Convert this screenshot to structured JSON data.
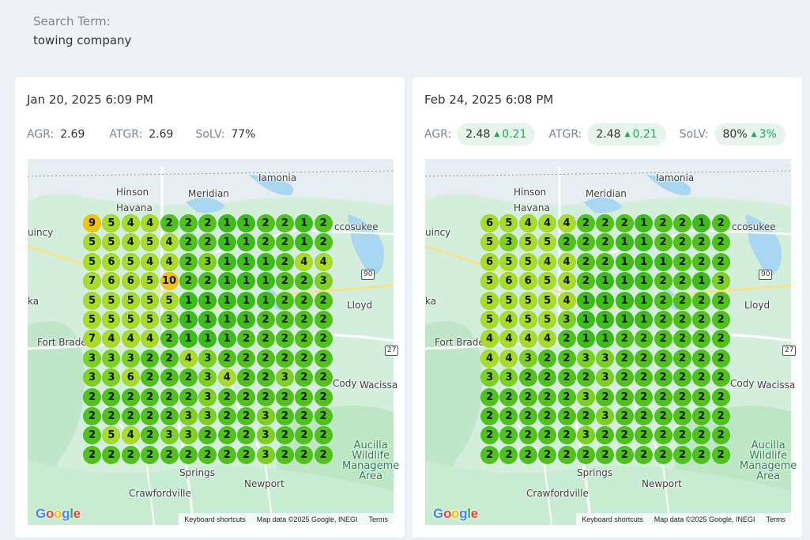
{
  "search": {
    "label": "Search Term:",
    "value": "towing company"
  },
  "colors": {
    "rank_1": "#3cbd1a",
    "rank_2": "#50c31b",
    "rank_3": "#7cd21f",
    "rank_4": "#a9dc28",
    "rank_5": "#a9dc28",
    "rank_6": "#a9dc28",
    "rank_7": "#a9dc28",
    "rank_8": "#f2c211",
    "rank_9": "#f2c211",
    "rank_10": "#f2c211",
    "delta_positive": "#22a85a"
  },
  "map": {
    "labels": {
      "iamonia": "Iamonia",
      "hinson": "Hinson",
      "meridian": "Meridian",
      "havana": "Havana",
      "miccosukee": "ccosukee",
      "quincy": "uincy",
      "lloyd": "Lloyd",
      "fort_braden": "Fort Braden",
      "cody": "Cody",
      "wacissa": "Wacissa",
      "wakulla_springs": "Springs",
      "newport": "Newport",
      "crawfordville": "Crawfordville",
      "aucilla": "Aucilla\nWildlife\nManageme\nArea",
      "midway": "ka",
      "hw90": "90",
      "hw27": "27"
    },
    "google_logo": "Google",
    "attribution": {
      "shortcuts": "Keyboard shortcuts",
      "map_data": "Map data ©2025 Google, INEGI",
      "terms": "Terms"
    }
  },
  "scans": [
    {
      "date": "Jan 20, 2025 6:09 PM",
      "metrics": {
        "agr_label": "AGR:",
        "agr_value": "2.69",
        "agr_delta": "",
        "atgr_label": "ATGR:",
        "atgr_value": "2.69",
        "atgr_delta": "",
        "solv_label": "SoLV:",
        "solv_value": "77%",
        "solv_delta": ""
      },
      "grid": [
        [
          9,
          5,
          4,
          4,
          2,
          2,
          2,
          1,
          1,
          2,
          2,
          1,
          2
        ],
        [
          5,
          5,
          4,
          5,
          4,
          2,
          2,
          1,
          1,
          2,
          2,
          1,
          2
        ],
        [
          5,
          6,
          5,
          4,
          4,
          2,
          3,
          1,
          1,
          1,
          2,
          4,
          4
        ],
        [
          7,
          6,
          6,
          5,
          10,
          2,
          2,
          1,
          1,
          1,
          2,
          2,
          3
        ],
        [
          5,
          5,
          5,
          5,
          5,
          1,
          1,
          1,
          1,
          1,
          2,
          2,
          2
        ],
        [
          5,
          5,
          5,
          5,
          3,
          1,
          1,
          1,
          1,
          2,
          2,
          2,
          2
        ],
        [
          7,
          4,
          4,
          4,
          2,
          1,
          1,
          1,
          2,
          2,
          2,
          2,
          2
        ],
        [
          3,
          3,
          3,
          2,
          2,
          4,
          3,
          2,
          2,
          2,
          2,
          2,
          2
        ],
        [
          3,
          3,
          6,
          2,
          2,
          2,
          3,
          4,
          2,
          2,
          3,
          2,
          2
        ],
        [
          2,
          2,
          2,
          2,
          2,
          2,
          3,
          2,
          2,
          2,
          2,
          2,
          2
        ],
        [
          2,
          2,
          2,
          2,
          2,
          3,
          3,
          2,
          2,
          3,
          2,
          2,
          2
        ],
        [
          2,
          5,
          4,
          2,
          3,
          3,
          2,
          2,
          2,
          3,
          2,
          2,
          2
        ],
        [
          2,
          2,
          2,
          2,
          2,
          2,
          2,
          2,
          2,
          3,
          2,
          2,
          2
        ]
      ]
    },
    {
      "date": "Feb 24, 2025 6:08 PM",
      "metrics": {
        "agr_label": "AGR:",
        "agr_value": "2.48",
        "agr_delta": "0.21",
        "atgr_label": "ATGR:",
        "atgr_value": "2.48",
        "atgr_delta": "0.21",
        "solv_label": "SoLV:",
        "solv_value": "80%",
        "solv_delta": "3%"
      },
      "grid": [
        [
          6,
          5,
          4,
          4,
          4,
          2,
          2,
          2,
          1,
          2,
          2,
          1,
          2
        ],
        [
          5,
          3,
          5,
          5,
          2,
          2,
          2,
          1,
          1,
          2,
          2,
          2,
          2
        ],
        [
          6,
          5,
          5,
          4,
          4,
          2,
          2,
          1,
          1,
          1,
          2,
          2,
          2
        ],
        [
          5,
          6,
          6,
          5,
          4,
          2,
          1,
          1,
          1,
          2,
          2,
          1,
          3
        ],
        [
          5,
          5,
          5,
          5,
          4,
          1,
          1,
          1,
          1,
          2,
          2,
          2,
          2
        ],
        [
          5,
          4,
          5,
          5,
          3,
          1,
          1,
          1,
          1,
          2,
          2,
          2,
          2
        ],
        [
          4,
          4,
          4,
          4,
          2,
          1,
          1,
          2,
          2,
          2,
          2,
          2,
          2
        ],
        [
          4,
          4,
          3,
          2,
          2,
          3,
          3,
          2,
          2,
          2,
          2,
          2,
          2
        ],
        [
          3,
          3,
          2,
          2,
          2,
          2,
          3,
          2,
          2,
          2,
          2,
          2,
          2
        ],
        [
          2,
          2,
          2,
          2,
          2,
          3,
          2,
          2,
          2,
          2,
          2,
          2,
          2
        ],
        [
          2,
          2,
          2,
          2,
          2,
          2,
          3,
          2,
          2,
          2,
          2,
          2,
          2
        ],
        [
          2,
          2,
          2,
          2,
          2,
          3,
          2,
          2,
          2,
          2,
          2,
          2,
          2
        ],
        [
          2,
          2,
          2,
          2,
          2,
          2,
          2,
          2,
          2,
          2,
          2,
          2,
          2
        ]
      ]
    }
  ]
}
